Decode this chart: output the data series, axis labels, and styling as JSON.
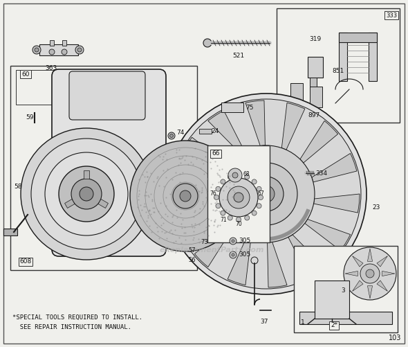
{
  "bg": "#f0f0ec",
  "lc": "#1a1a1a",
  "bc": "#222222",
  "tc": "#111111",
  "watermark": "eReplacementParts.com",
  "footer1": "*SPECIAL TOOLS REQUIRED TO INSTALL.",
  "footer2": "  SEE REPAIR INSTRUCTION MANUAL.",
  "page_num": "103",
  "fig_w": 5.9,
  "fig_h": 5.01,
  "dpi": 100
}
